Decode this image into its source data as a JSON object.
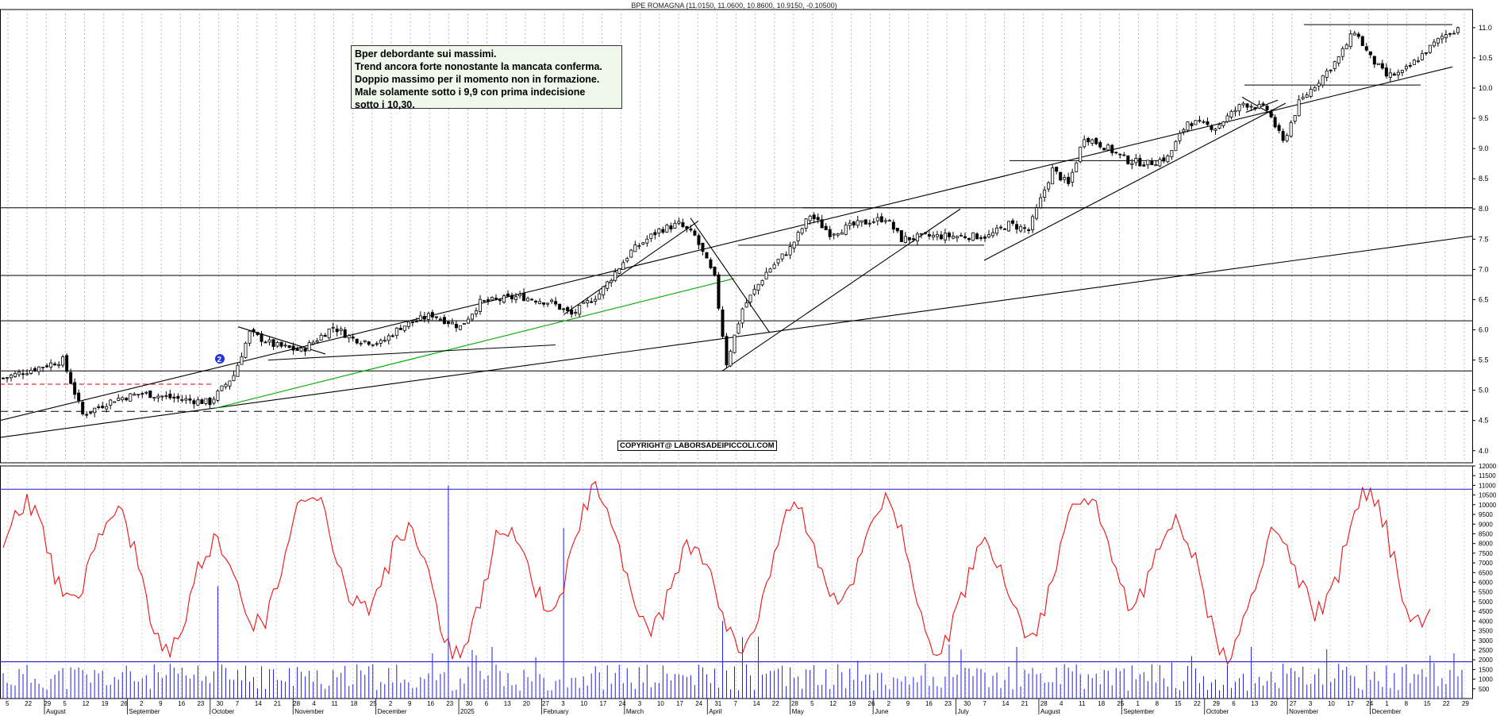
{
  "chart_data": [
    {
      "type": "candlestick",
      "title": "BPE ROMAGNA (11.0150, 11.0600, 10.8600, 10.9150, -0.10500)",
      "ylim": [
        3.8,
        11.3
      ],
      "y_ticks": [
        "4.0",
        "4.5",
        "5.0",
        "5.5",
        "6.0",
        "6.5",
        "7.0",
        "7.5",
        "8.0",
        "8.5",
        "9.0",
        "9.5",
        "10.0",
        "10.5",
        "11.0"
      ],
      "x_day_ticks": [
        "5",
        "22",
        "29",
        "5",
        "12",
        "19",
        "26",
        "2",
        "9",
        "16",
        "23",
        "30",
        "7",
        "14",
        "21",
        "28",
        "4",
        "11",
        "18",
        "25",
        "2",
        "9",
        "16",
        "23",
        "30",
        "6",
        "13",
        "20",
        "27",
        "3",
        "10",
        "17",
        "24",
        "3",
        "10",
        "17",
        "24",
        "31",
        "7",
        "14",
        "22",
        "28",
        "5",
        "12",
        "19",
        "26",
        "2",
        "9",
        "16",
        "23",
        "30",
        "7",
        "14",
        "21",
        "28",
        "4",
        "11",
        "18",
        "25",
        "1",
        "8",
        "15",
        "22",
        "29",
        "6",
        "13",
        "20",
        "27",
        "3",
        "10",
        "17",
        "24",
        "1",
        "8",
        "15",
        "22",
        "29"
      ],
      "x_month_labels": [
        "August",
        "September",
        "October",
        "November",
        "December",
        "2025",
        "February",
        "March",
        "April",
        "May",
        "June",
        "July",
        "August",
        "September",
        "October",
        "November",
        "December"
      ],
      "annotation_lines": [
        "Bper debordante sui massimi.",
        "Trend ancora forte nonostante la mancata conferma.",
        "Doppio massimo per il momento non in formazione.",
        "Male solamente sotto i 9,9  con prima indecisione",
        "sotto i 10,30."
      ],
      "copyright": "COPYRIGHT@ LABORSADEIPICCOLI.COM",
      "marker_label": "2",
      "horizontal_levels": [
        4.65,
        5.32,
        6.15,
        6.9,
        8.02
      ],
      "series_keypoints": [
        [
          0,
          5.2
        ],
        [
          15,
          5.5
        ],
        [
          20,
          4.6
        ],
        [
          28,
          4.85
        ],
        [
          35,
          4.95
        ],
        [
          45,
          4.85
        ],
        [
          52,
          4.8
        ],
        [
          58,
          5.25
        ],
        [
          62,
          5.95
        ],
        [
          68,
          5.75
        ],
        [
          75,
          5.65
        ],
        [
          83,
          6.05
        ],
        [
          88,
          5.85
        ],
        [
          95,
          5.78
        ],
        [
          100,
          6.05
        ],
        [
          108,
          6.25
        ],
        [
          115,
          6.05
        ],
        [
          120,
          6.45
        ],
        [
          130,
          6.55
        ],
        [
          138,
          6.45
        ],
        [
          143,
          6.25
        ],
        [
          150,
          6.6
        ],
        [
          158,
          7.3
        ],
        [
          165,
          7.65
        ],
        [
          170,
          7.75
        ],
        [
          174,
          7.55
        ],
        [
          179,
          6.85
        ],
        [
          182,
          5.45
        ],
        [
          186,
          6.35
        ],
        [
          192,
          6.95
        ],
        [
          198,
          7.35
        ],
        [
          203,
          7.9
        ],
        [
          208,
          7.6
        ],
        [
          215,
          7.75
        ],
        [
          222,
          7.85
        ],
        [
          226,
          7.5
        ],
        [
          233,
          7.55
        ],
        [
          240,
          7.55
        ],
        [
          248,
          7.55
        ],
        [
          253,
          7.75
        ],
        [
          258,
          7.65
        ],
        [
          264,
          8.65
        ],
        [
          268,
          8.4
        ],
        [
          272,
          9.2
        ],
        [
          278,
          9.0
        ],
        [
          283,
          8.8
        ],
        [
          288,
          8.75
        ],
        [
          293,
          8.85
        ],
        [
          298,
          9.45
        ],
        [
          305,
          9.35
        ],
        [
          312,
          9.75
        ],
        [
          318,
          9.65
        ],
        [
          322,
          9.1
        ],
        [
          326,
          9.75
        ],
        [
          330,
          10.05
        ],
        [
          336,
          10.5
        ],
        [
          340,
          10.95
        ],
        [
          344,
          10.5
        ],
        [
          348,
          10.2
        ],
        [
          352,
          10.25
        ],
        [
          357,
          10.55
        ],
        [
          362,
          10.85
        ],
        [
          366,
          11.0
        ]
      ]
    },
    {
      "type": "line+bar",
      "ylim": [
        0,
        12000
      ],
      "y_ticks": [
        "500",
        "1000",
        "1500",
        "2000",
        "2500",
        "3000",
        "3500",
        "4000",
        "4500",
        "5000",
        "5500",
        "6000",
        "6500",
        "7000",
        "7500",
        "8000",
        "8500",
        "9000",
        "9500",
        "10000",
        "10500",
        "11000",
        "11500",
        "12000"
      ],
      "reference_lines": [
        1900,
        10800
      ],
      "colors": {
        "oscillator": "#ee1111",
        "volume": "#1f1fe6",
        "reference": "#3333dd"
      }
    }
  ]
}
